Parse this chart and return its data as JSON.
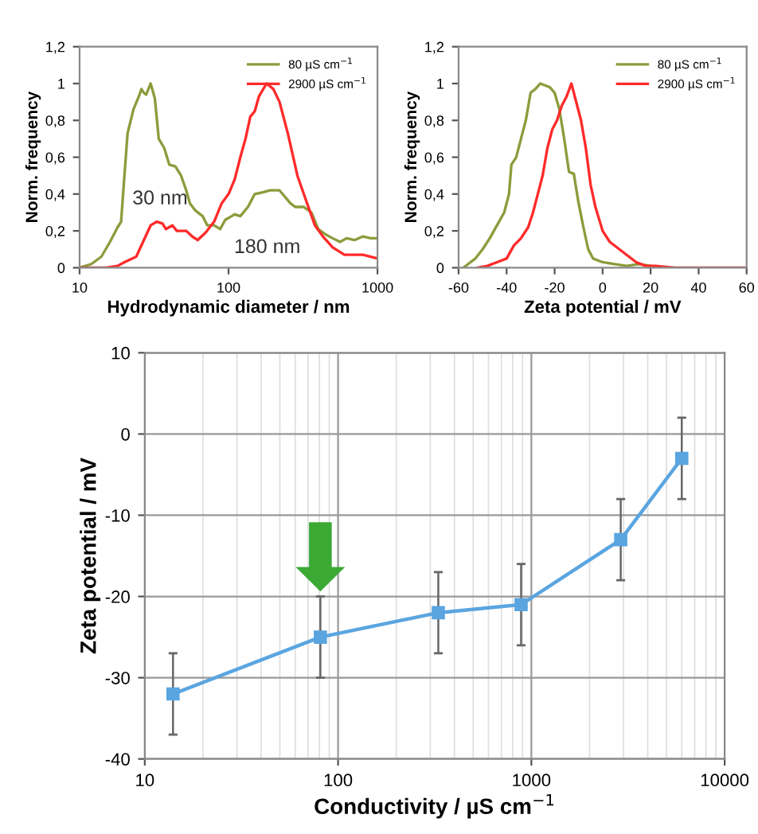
{
  "chart_data": [
    {
      "type": "line",
      "xlabel": "Hydrodynamic diameter / nm",
      "ylabel": "Norm. frequency",
      "log": "x",
      "xlim": [
        10,
        1000
      ],
      "xticks": [
        10,
        100,
        1000
      ],
      "ylim": [
        0,
        1.2
      ],
      "yticks": [
        {
          "value": 0,
          "label": "0"
        },
        {
          "value": 0.2,
          "label": "0,2"
        },
        {
          "value": 0.4,
          "label": "0,4"
        },
        {
          "value": 0.6,
          "label": "0,6"
        },
        {
          "value": 0.8,
          "label": "0,8"
        },
        {
          "value": 1,
          "label": "1"
        },
        {
          "value": 1.2,
          "label": "1,2"
        }
      ],
      "legend": "top right",
      "grid": false,
      "marker": "none",
      "line_style": "solid",
      "annotations": [
        "30 nm",
        "180 nm"
      ],
      "series": [
        {
          "name": "80 µS cm$^{−1}$",
          "color": "#8c9c3c",
          "x": [
            10,
            12,
            14,
            16,
            18,
            19,
            20,
            21,
            23,
            25,
            26,
            27,
            28,
            30,
            32,
            34,
            37,
            40,
            44,
            48,
            52,
            55,
            60,
            67,
            72,
            80,
            88,
            95,
            105,
            110,
            120,
            135,
            150,
            170,
            190,
            220,
            260,
            280,
            320,
            360,
            400,
            450,
            500,
            560,
            620,
            700,
            800,
            900,
            1000
          ],
          "values": [
            0,
            0.02,
            0.06,
            0.14,
            0.22,
            0.25,
            0.5,
            0.73,
            0.86,
            0.93,
            0.97,
            0.95,
            0.94,
            1.0,
            0.92,
            0.7,
            0.65,
            0.56,
            0.55,
            0.5,
            0.42,
            0.35,
            0.31,
            0.28,
            0.23,
            0.23,
            0.21,
            0.26,
            0.28,
            0.29,
            0.28,
            0.33,
            0.4,
            0.41,
            0.42,
            0.42,
            0.35,
            0.33,
            0.33,
            0.3,
            0.21,
            0.18,
            0.16,
            0.14,
            0.16,
            0.15,
            0.17,
            0.16,
            0.16
          ]
        },
        {
          "name": "2900 µS cm$^{−1}$",
          "color": "#ff2a2a",
          "x": [
            10,
            15,
            18,
            20,
            24,
            27,
            30,
            33,
            36,
            38,
            42,
            45,
            52,
            57,
            62,
            70,
            80,
            90,
            100,
            110,
            120,
            130,
            140,
            150,
            160,
            180,
            200,
            220,
            250,
            290,
            330,
            380,
            430,
            500,
            600,
            800,
            900,
            1000
          ],
          "values": [
            0,
            0,
            0.01,
            0.03,
            0.06,
            0.15,
            0.23,
            0.25,
            0.24,
            0.21,
            0.23,
            0.2,
            0.2,
            0.17,
            0.15,
            0.19,
            0.25,
            0.35,
            0.4,
            0.48,
            0.6,
            0.7,
            0.82,
            0.85,
            0.93,
            1.0,
            0.97,
            0.9,
            0.73,
            0.5,
            0.37,
            0.23,
            0.17,
            0.11,
            0.07,
            0.07,
            0.06,
            0.05
          ]
        }
      ]
    },
    {
      "type": "line",
      "xlabel": "Zeta potential / mV",
      "ylabel": "Norm. frequency",
      "xlim": [
        -60,
        60
      ],
      "xticks": [
        -60,
        -40,
        -20,
        0,
        20,
        40,
        60
      ],
      "ylim": [
        0,
        1.2
      ],
      "yticks": [
        {
          "value": 0,
          "label": "0"
        },
        {
          "value": 0.2,
          "label": "0,2"
        },
        {
          "value": 0.4,
          "label": "0,4"
        },
        {
          "value": 0.6,
          "label": "0,6"
        },
        {
          "value": 0.8,
          "label": "0,8"
        },
        {
          "value": 1,
          "label": "1"
        },
        {
          "value": 1.2,
          "label": "1,2"
        }
      ],
      "legend": "top right",
      "grid": false,
      "marker": "none",
      "line_style": "solid",
      "series": [
        {
          "name": "80 µS cm$^{−1}$",
          "color": "#8c9c3c",
          "x": [
            -58,
            -56,
            -53,
            -50,
            -47,
            -44,
            -41,
            -39,
            -38,
            -36,
            -34,
            -32,
            -30,
            -28,
            -26,
            -24,
            -22,
            -20,
            -18,
            -16,
            -14,
            -12,
            -10,
            -8,
            -6,
            -4,
            0,
            5,
            10,
            15,
            20,
            22
          ],
          "values": [
            0,
            0.02,
            0.05,
            0.1,
            0.16,
            0.23,
            0.3,
            0.4,
            0.56,
            0.6,
            0.7,
            0.8,
            0.95,
            0.97,
            1.0,
            0.99,
            0.98,
            0.95,
            0.86,
            0.7,
            0.52,
            0.51,
            0.35,
            0.22,
            0.1,
            0.05,
            0.03,
            0.02,
            0.01,
            0.02,
            0.01,
            0
          ]
        },
        {
          "name": "2900 µS cm$^{−1}$",
          "color": "#ff2a2a",
          "x": [
            -52,
            -48,
            -44,
            -40,
            -37,
            -34,
            -31,
            -29,
            -27,
            -25,
            -23,
            -21,
            -19,
            -17,
            -15,
            -13,
            -11,
            -9,
            -7,
            -5,
            -3,
            0,
            3,
            7,
            10,
            14,
            18,
            22,
            30,
            60
          ],
          "values": [
            0,
            0.01,
            0.03,
            0.05,
            0.12,
            0.16,
            0.22,
            0.3,
            0.4,
            0.5,
            0.65,
            0.75,
            0.8,
            0.88,
            0.93,
            1.0,
            0.9,
            0.8,
            0.65,
            0.45,
            0.33,
            0.2,
            0.14,
            0.1,
            0.07,
            0.03,
            0.01,
            0.01,
            0,
            0
          ]
        }
      ]
    },
    {
      "type": "line",
      "xlabel": "Conductivity / µS cm$^{−1}$",
      "ylabel": "Zeta potential / mV",
      "log": "x",
      "xlim": [
        10,
        10000
      ],
      "xticks": [
        10,
        100,
        1000,
        10000
      ],
      "ylim": [
        -40,
        10
      ],
      "yticks": [
        -40,
        -30,
        -20,
        -10,
        0,
        10
      ],
      "grid": true,
      "marker": "square",
      "line_style": "solid",
      "series": [
        {
          "color": "#5aa5e0",
          "x": [
            14,
            81,
            330,
            885,
            2900,
            6000
          ],
          "values": [
            -32,
            -25,
            -22,
            -21,
            -13,
            -3
          ],
          "errors": [
            5,
            5,
            5,
            5,
            5,
            5
          ]
        }
      ]
    }
  ]
}
